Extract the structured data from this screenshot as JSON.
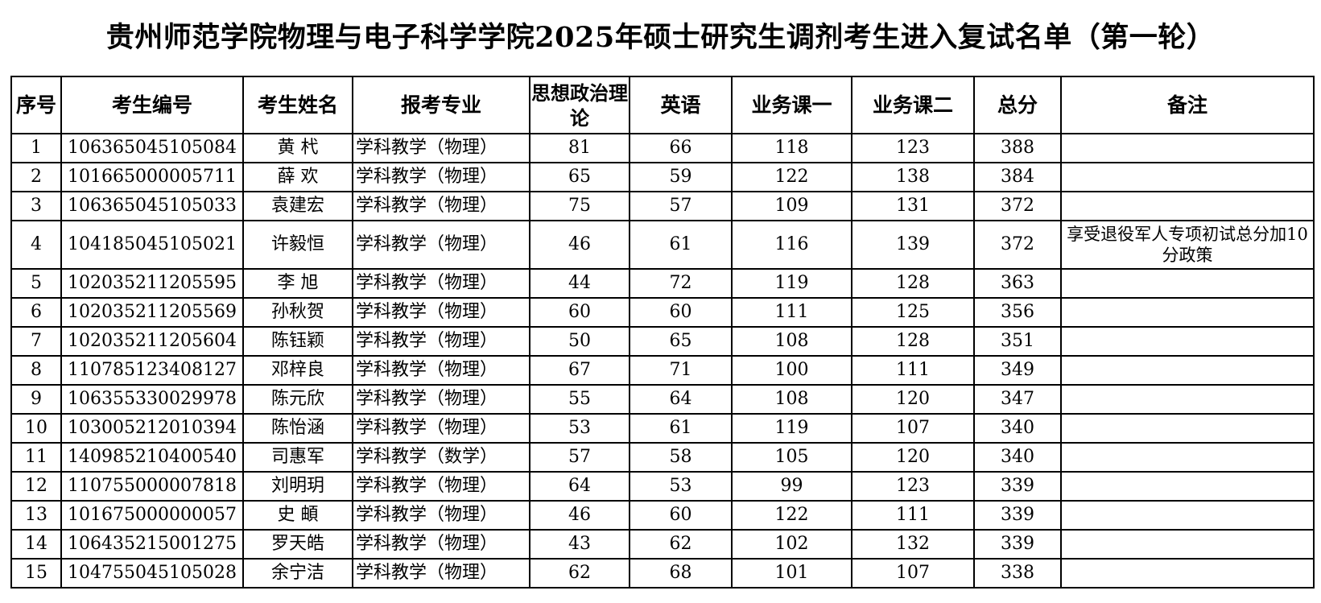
{
  "header": {
    "title": "贵州师范学院物理与电子科学学院2025年硕士研究生调剂考生进入复试名单（第一轮）"
  },
  "table": {
    "columns": [
      "序号",
      "考生编号",
      "考生姓名",
      "报考专业",
      "思想政治理论",
      "英语",
      "业务课一",
      "业务课二",
      "总分",
      "备注"
    ],
    "rows": [
      [
        1,
        "106365045105084",
        "黄 杙",
        "学科教学（物理）",
        81,
        66,
        118,
        123,
        388,
        ""
      ],
      [
        2,
        "101665000005711",
        "薛 欢",
        "学科教学（物理）",
        65,
        59,
        122,
        138,
        384,
        ""
      ],
      [
        3,
        "106365045105033",
        "袁建宏",
        "学科教学（物理）",
        75,
        57,
        109,
        131,
        372,
        ""
      ],
      [
        4,
        "104185045105021",
        "许毅恒",
        "学科教学（物理）",
        46,
        61,
        116,
        139,
        372,
        "享受退役军人专项初试总分加10分政策"
      ],
      [
        5,
        "102035211205595",
        "李 旭",
        "学科教学（物理）",
        44,
        72,
        119,
        128,
        363,
        ""
      ],
      [
        6,
        "102035211205569",
        "孙秋贺",
        "学科教学（物理）",
        60,
        60,
        111,
        125,
        356,
        ""
      ],
      [
        7,
        "102035211205604",
        "陈钰颖",
        "学科教学（物理）",
        50,
        65,
        108,
        128,
        351,
        ""
      ],
      [
        8,
        "110785123408127",
        "邓梓良",
        "学科教学（物理）",
        67,
        71,
        100,
        111,
        349,
        ""
      ],
      [
        9,
        "106355330029978",
        "陈元欣",
        "学科教学（物理）",
        55,
        64,
        108,
        120,
        347,
        ""
      ],
      [
        10,
        "103005212010394",
        "陈怡涵",
        "学科教学（物理）",
        53,
        61,
        119,
        107,
        340,
        ""
      ],
      [
        11,
        "140985210400540",
        "司惠军",
        "学科教学（数学）",
        57,
        58,
        105,
        120,
        340,
        ""
      ],
      [
        12,
        "110755000007818",
        "刘明玥",
        "学科教学（物理）",
        64,
        53,
        99,
        123,
        339,
        ""
      ],
      [
        13,
        "101675000000057",
        "史 頔",
        "学科教学（物理）",
        46,
        60,
        122,
        111,
        339,
        ""
      ],
      [
        14,
        "106435215001275",
        "罗天皓",
        "学科教学（物理）",
        43,
        62,
        102,
        132,
        339,
        ""
      ],
      [
        15,
        "104755045105028",
        "余宁洁",
        "学科教学（物理）",
        62,
        68,
        101,
        107,
        338,
        ""
      ]
    ]
  }
}
